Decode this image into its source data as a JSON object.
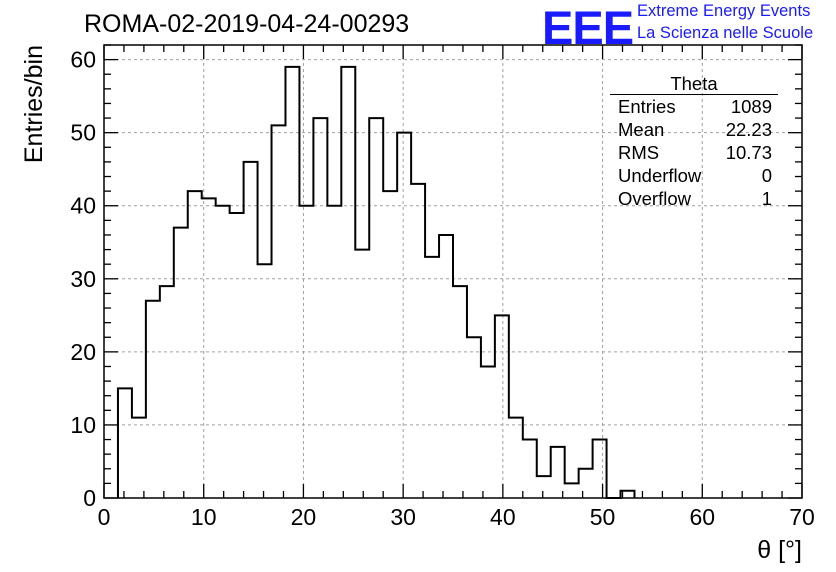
{
  "page_title": "ROMA-02-2019-04-24-00293",
  "logo": {
    "mark": "EEE",
    "line1": "Extreme Energy Events",
    "line2": "La Scienza nelle Scuole",
    "color": "#1a1aff"
  },
  "stats_box": {
    "title": "Theta",
    "rows": [
      {
        "label": "Entries",
        "value": "1089"
      },
      {
        "label": "Mean",
        "value": "22.23"
      },
      {
        "label": "RMS",
        "value": "10.73"
      },
      {
        "label": "Underflow",
        "value": "0"
      },
      {
        "label": "Overflow",
        "value": "1"
      }
    ]
  },
  "chart_data": {
    "type": "bar",
    "title": "ROMA-02-2019-04-24-00293",
    "xlabel": "θ [°]",
    "ylabel": "Entries/bin",
    "xlim": [
      0,
      70
    ],
    "ylim": [
      0,
      62
    ],
    "grid": true,
    "bin_width": 1.4,
    "x_start": 1.4,
    "values": [
      15,
      11,
      27,
      29,
      37,
      42,
      41,
      40,
      39,
      46,
      32,
      51,
      59,
      40,
      52,
      40,
      59,
      34,
      52,
      42,
      50,
      43,
      33,
      36,
      29,
      22,
      18,
      25,
      11,
      8,
      3,
      7,
      2,
      4,
      8,
      0,
      1
    ],
    "x_ticks": [
      0,
      10,
      20,
      30,
      40,
      50,
      60,
      70
    ],
    "y_ticks": [
      0,
      10,
      20,
      30,
      40,
      50,
      60
    ],
    "line_color": "#000000",
    "grid_color": "#a0a0a0"
  }
}
